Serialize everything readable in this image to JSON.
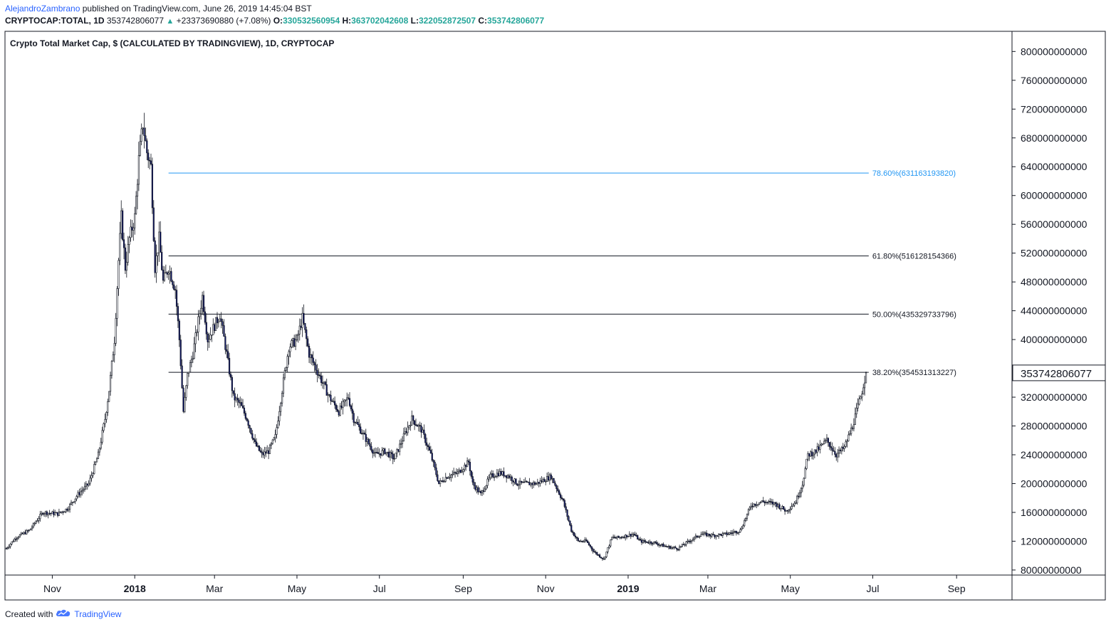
{
  "header": {
    "author": "AlejandroZambrano",
    "published": "published on TradingView.com, June 26, 2019 14:45:04 BST",
    "symbol": "CRYPTOCAP:TOTAL, 1D",
    "last": "353742806077",
    "change_arrow": "▲",
    "change": "+23373690880 (+7.08%)",
    "o_label": "O:",
    "o_value": "330532560954",
    "h_label": "H:",
    "h_value": "363702042608",
    "l_label": "L:",
    "l_value": "322052872507",
    "c_label": "C:",
    "c_value": "353742806077"
  },
  "footer": {
    "created_with": "Created with",
    "brand": "TradingView",
    "brand_icon": "tradingview-cloud-icon"
  },
  "colors": {
    "candle": "#131722",
    "fib_786": "#2196f3",
    "fib_other": "#131722",
    "accent": "#2962ff",
    "up": "#26a69a"
  },
  "chart_data": {
    "type": "candlestick",
    "title": "Crypto Total Market Cap, $ (CALCULATED BY TRADINGVIEW), 1D, CRYPTOCAP",
    "x_ticks": [
      {
        "label": "Nov",
        "date": "2017-11-01",
        "bold": false
      },
      {
        "label": "2018",
        "date": "2018-01-01",
        "bold": true
      },
      {
        "label": "Mar",
        "date": "2018-03-01",
        "bold": false
      },
      {
        "label": "May",
        "date": "2018-05-01",
        "bold": false
      },
      {
        "label": "Jul",
        "date": "2018-07-01",
        "bold": false
      },
      {
        "label": "Sep",
        "date": "2018-09-01",
        "bold": false
      },
      {
        "label": "Nov",
        "date": "2018-11-01",
        "bold": false
      },
      {
        "label": "2019",
        "date": "2019-01-01",
        "bold": true
      },
      {
        "label": "Mar",
        "date": "2019-03-01",
        "bold": false
      },
      {
        "label": "May",
        "date": "2019-05-01",
        "bold": false
      },
      {
        "label": "Jul",
        "date": "2019-07-01",
        "bold": false
      },
      {
        "label": "Sep",
        "date": "2019-09-01",
        "bold": false
      }
    ],
    "y_ticks": [
      "800000000000",
      "760000000000",
      "720000000000",
      "680000000000",
      "640000000000",
      "600000000000",
      "560000000000",
      "520000000000",
      "480000000000",
      "440000000000",
      "400000000000",
      "320000000000",
      "280000000000",
      "240000000000",
      "200000000000",
      "160000000000",
      "120000000000",
      "80000000000"
    ],
    "y_tick_values": [
      800000000000,
      760000000000,
      720000000000,
      680000000000,
      640000000000,
      600000000000,
      560000000000,
      520000000000,
      480000000000,
      440000000000,
      400000000000,
      320000000000,
      280000000000,
      240000000000,
      200000000000,
      160000000000,
      120000000000,
      80000000000
    ],
    "ylim": [
      73000000000,
      828000000000
    ],
    "xlim": [
      "2017-09-27",
      "2019-10-12"
    ],
    "last_price_label": "353742806077",
    "last_price": 353742806077,
    "fib_levels": [
      {
        "label": "78.60%(631163193820)",
        "value": 631163193820,
        "color_key": "fib_786"
      },
      {
        "label": "61.80%(516128154366)",
        "value": 516128154366,
        "color_key": "fib_other"
      },
      {
        "label": "50.00%(435329733796)",
        "value": 435329733796,
        "color_key": "fib_other"
      },
      {
        "label": "38.20%(354531313227)",
        "value": 354531313227,
        "color_key": "fib_other"
      }
    ],
    "fib_start_date": "2018-01-26",
    "fib_end_date": "2019-06-28",
    "price_path": [
      {
        "date": "2017-09-28",
        "value": 110000000000
      },
      {
        "date": "2017-10-05",
        "value": 125000000000
      },
      {
        "date": "2017-10-15",
        "value": 135000000000
      },
      {
        "date": "2017-10-25",
        "value": 160000000000
      },
      {
        "date": "2017-11-05",
        "value": 158000000000
      },
      {
        "date": "2017-11-12",
        "value": 165000000000
      },
      {
        "date": "2017-11-20",
        "value": 185000000000
      },
      {
        "date": "2017-11-28",
        "value": 200000000000
      },
      {
        "date": "2017-12-05",
        "value": 240000000000
      },
      {
        "date": "2017-12-10",
        "value": 290000000000
      },
      {
        "date": "2017-12-13",
        "value": 330000000000
      },
      {
        "date": "2017-12-17",
        "value": 400000000000
      },
      {
        "date": "2017-12-20",
        "value": 510000000000
      },
      {
        "date": "2017-12-22",
        "value": 570000000000
      },
      {
        "date": "2017-12-25",
        "value": 500000000000
      },
      {
        "date": "2017-12-28",
        "value": 540000000000
      },
      {
        "date": "2018-01-01",
        "value": 570000000000
      },
      {
        "date": "2018-01-04",
        "value": 650000000000
      },
      {
        "date": "2018-01-07",
        "value": 700000000000
      },
      {
        "date": "2018-01-10",
        "value": 660000000000
      },
      {
        "date": "2018-01-13",
        "value": 640000000000
      },
      {
        "date": "2018-01-16",
        "value": 500000000000
      },
      {
        "date": "2018-01-19",
        "value": 540000000000
      },
      {
        "date": "2018-01-22",
        "value": 480000000000
      },
      {
        "date": "2018-01-26",
        "value": 500000000000
      },
      {
        "date": "2018-01-31",
        "value": 470000000000
      },
      {
        "date": "2018-02-03",
        "value": 400000000000
      },
      {
        "date": "2018-02-06",
        "value": 300000000000
      },
      {
        "date": "2018-02-09",
        "value": 350000000000
      },
      {
        "date": "2018-02-13",
        "value": 380000000000
      },
      {
        "date": "2018-02-20",
        "value": 460000000000
      },
      {
        "date": "2018-02-24",
        "value": 400000000000
      },
      {
        "date": "2018-03-05",
        "value": 435000000000
      },
      {
        "date": "2018-03-10",
        "value": 380000000000
      },
      {
        "date": "2018-03-15",
        "value": 320000000000
      },
      {
        "date": "2018-03-20",
        "value": 310000000000
      },
      {
        "date": "2018-03-25",
        "value": 290000000000
      },
      {
        "date": "2018-03-31",
        "value": 255000000000
      },
      {
        "date": "2018-04-05",
        "value": 240000000000
      },
      {
        "date": "2018-04-10",
        "value": 245000000000
      },
      {
        "date": "2018-04-15",
        "value": 265000000000
      },
      {
        "date": "2018-04-20",
        "value": 330000000000
      },
      {
        "date": "2018-04-25",
        "value": 390000000000
      },
      {
        "date": "2018-05-01",
        "value": 400000000000
      },
      {
        "date": "2018-05-05",
        "value": 430000000000
      },
      {
        "date": "2018-05-10",
        "value": 380000000000
      },
      {
        "date": "2018-05-15",
        "value": 360000000000
      },
      {
        "date": "2018-05-25",
        "value": 320000000000
      },
      {
        "date": "2018-06-01",
        "value": 300000000000
      },
      {
        "date": "2018-06-08",
        "value": 320000000000
      },
      {
        "date": "2018-06-12",
        "value": 290000000000
      },
      {
        "date": "2018-06-20",
        "value": 265000000000
      },
      {
        "date": "2018-06-28",
        "value": 240000000000
      },
      {
        "date": "2018-07-05",
        "value": 245000000000
      },
      {
        "date": "2018-07-12",
        "value": 235000000000
      },
      {
        "date": "2018-07-20",
        "value": 270000000000
      },
      {
        "date": "2018-07-25",
        "value": 290000000000
      },
      {
        "date": "2018-08-01",
        "value": 275000000000
      },
      {
        "date": "2018-08-08",
        "value": 240000000000
      },
      {
        "date": "2018-08-14",
        "value": 200000000000
      },
      {
        "date": "2018-08-20",
        "value": 210000000000
      },
      {
        "date": "2018-08-28",
        "value": 215000000000
      },
      {
        "date": "2018-09-05",
        "value": 230000000000
      },
      {
        "date": "2018-09-08",
        "value": 200000000000
      },
      {
        "date": "2018-09-14",
        "value": 185000000000
      },
      {
        "date": "2018-09-21",
        "value": 210000000000
      },
      {
        "date": "2018-09-28",
        "value": 215000000000
      },
      {
        "date": "2018-10-05",
        "value": 210000000000
      },
      {
        "date": "2018-10-11",
        "value": 200000000000
      },
      {
        "date": "2018-10-18",
        "value": 200000000000
      },
      {
        "date": "2018-10-25",
        "value": 200000000000
      },
      {
        "date": "2018-11-05",
        "value": 210000000000
      },
      {
        "date": "2018-11-14",
        "value": 175000000000
      },
      {
        "date": "2018-11-20",
        "value": 135000000000
      },
      {
        "date": "2018-11-25",
        "value": 120000000000
      },
      {
        "date": "2018-12-01",
        "value": 120000000000
      },
      {
        "date": "2018-12-07",
        "value": 105000000000
      },
      {
        "date": "2018-12-14",
        "value": 95000000000
      },
      {
        "date": "2018-12-20",
        "value": 125000000000
      },
      {
        "date": "2018-12-25",
        "value": 125000000000
      },
      {
        "date": "2019-01-05",
        "value": 130000000000
      },
      {
        "date": "2019-01-10",
        "value": 120000000000
      },
      {
        "date": "2019-01-20",
        "value": 118000000000
      },
      {
        "date": "2019-01-30",
        "value": 112000000000
      },
      {
        "date": "2019-02-07",
        "value": 110000000000
      },
      {
        "date": "2019-02-15",
        "value": 120000000000
      },
      {
        "date": "2019-02-24",
        "value": 130000000000
      },
      {
        "date": "2019-03-05",
        "value": 128000000000
      },
      {
        "date": "2019-03-15",
        "value": 130000000000
      },
      {
        "date": "2019-03-25",
        "value": 135000000000
      },
      {
        "date": "2019-04-02",
        "value": 170000000000
      },
      {
        "date": "2019-04-10",
        "value": 175000000000
      },
      {
        "date": "2019-04-20",
        "value": 172000000000
      },
      {
        "date": "2019-04-28",
        "value": 162000000000
      },
      {
        "date": "2019-05-05",
        "value": 175000000000
      },
      {
        "date": "2019-05-10",
        "value": 200000000000
      },
      {
        "date": "2019-05-14",
        "value": 240000000000
      },
      {
        "date": "2019-05-20",
        "value": 245000000000
      },
      {
        "date": "2019-05-28",
        "value": 260000000000
      },
      {
        "date": "2019-06-04",
        "value": 240000000000
      },
      {
        "date": "2019-06-10",
        "value": 250000000000
      },
      {
        "date": "2019-06-16",
        "value": 280000000000
      },
      {
        "date": "2019-06-22",
        "value": 320000000000
      },
      {
        "date": "2019-06-26",
        "value": 353742806077
      }
    ]
  }
}
